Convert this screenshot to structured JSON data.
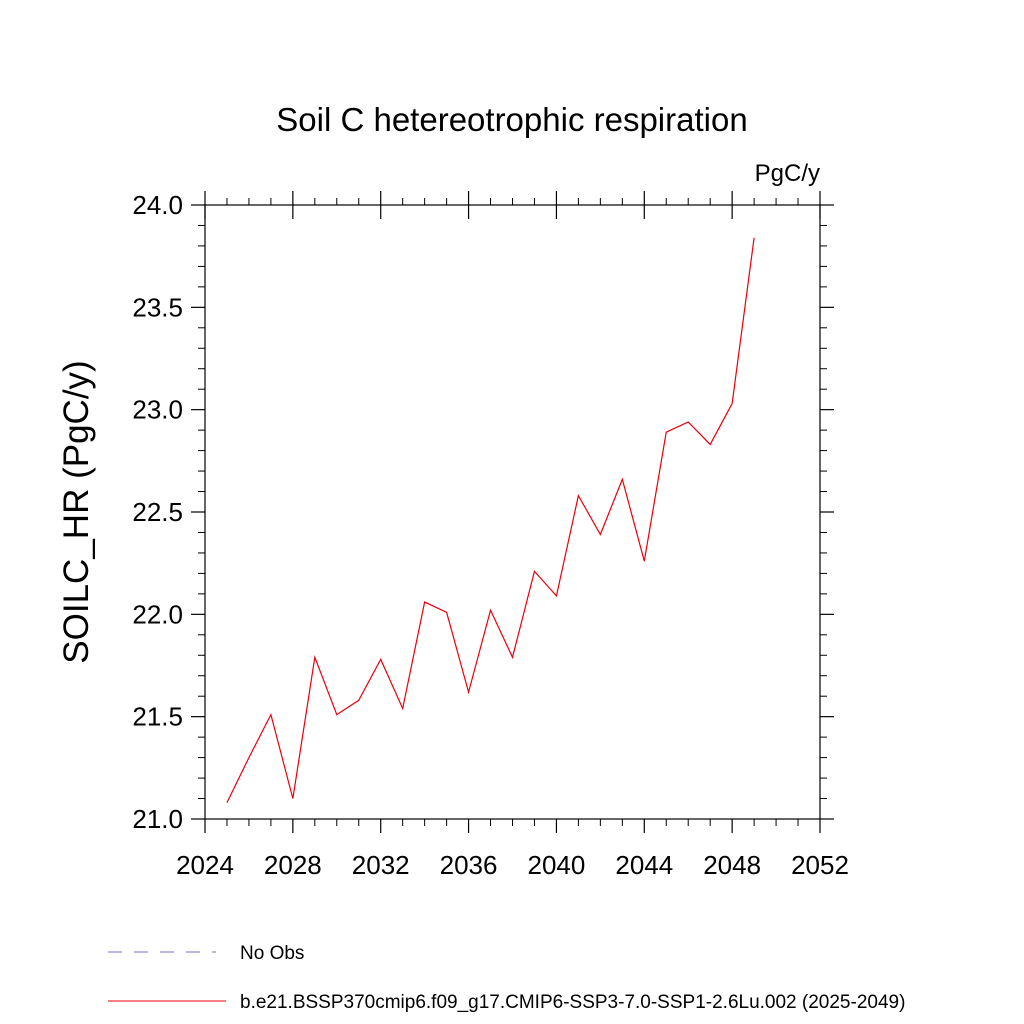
{
  "chart_data": {
    "type": "line",
    "title": "Soil C hetereotrophic respiration",
    "units": "PgC/y",
    "ylabel": "SOILC_HR  (PgC/y)",
    "xlabel": "",
    "xlim": [
      2024,
      2052
    ],
    "ylim": [
      21.0,
      24.0
    ],
    "xticks": [
      2024,
      2028,
      2032,
      2036,
      2040,
      2044,
      2048,
      2052
    ],
    "xtick_labels": [
      "2024",
      "2028",
      "2032",
      "2036",
      "2040",
      "2044",
      "2048",
      "2052"
    ],
    "yticks": [
      21.0,
      21.5,
      22.0,
      22.5,
      23.0,
      23.5,
      24.0
    ],
    "ytick_labels": [
      "21.0",
      "21.5",
      "22.0",
      "22.5",
      "23.0",
      "23.5",
      "24.0"
    ],
    "x": [
      2025,
      2026,
      2027,
      2028,
      2029,
      2030,
      2031,
      2032,
      2033,
      2034,
      2035,
      2036,
      2037,
      2038,
      2039,
      2040,
      2041,
      2042,
      2043,
      2044,
      2045,
      2046,
      2047,
      2048,
      2049
    ],
    "series": [
      {
        "name": "b.e21.BSSP370cmip6.f09_g17.CMIP6-SSP3-7.0-SSP1-2.6Lu.002 (2025-2049)",
        "color": "#e8000b",
        "style": "solid",
        "values": [
          21.08,
          21.3,
          21.51,
          21.1,
          21.79,
          21.51,
          21.58,
          21.78,
          21.54,
          22.06,
          22.01,
          21.62,
          22.02,
          21.79,
          22.21,
          22.09,
          22.58,
          22.39,
          22.66,
          22.26,
          22.89,
          22.94,
          22.83,
          23.03,
          23.84
        ]
      }
    ],
    "legend": [
      {
        "label": "No Obs",
        "color": "#7b68c8",
        "style": "dashed"
      },
      {
        "label": "b.e21.BSSP370cmip6.f09_g17.CMIP6-SSP3-7.0-SSP1-2.6Lu.002 (2025-2049)",
        "color": "#e8000b",
        "style": "solid"
      }
    ],
    "legend_position": "bottom"
  }
}
